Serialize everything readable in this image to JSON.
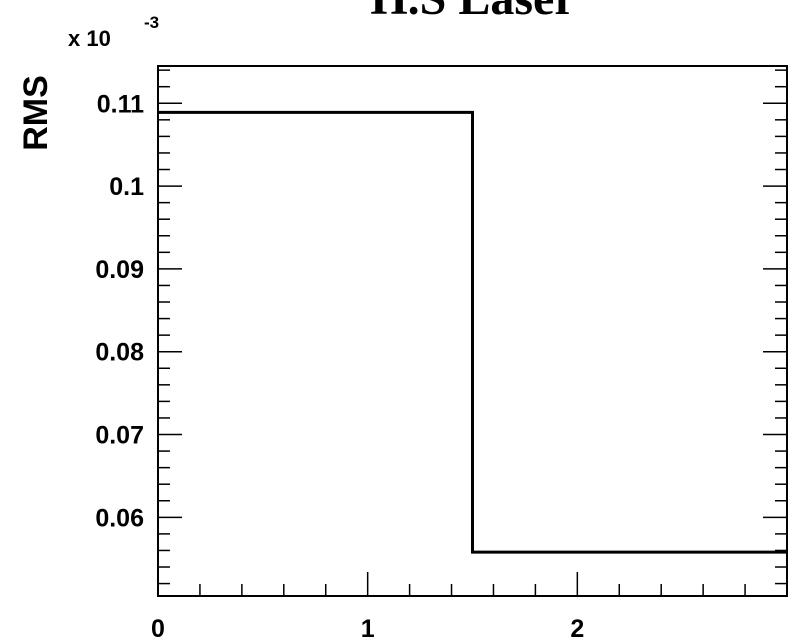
{
  "chart_data": {
    "type": "line",
    "style": "step-histogram",
    "title": "H.S Laser",
    "ylabel": "RMS",
    "xlabel": "",
    "y_multiplier_base": "x 10",
    "y_multiplier_exponent": "-3",
    "xlim": [
      0,
      3
    ],
    "ylim": [
      0.0505,
      0.1145
    ],
    "x_ticks": [
      "0",
      "1",
      "2"
    ],
    "y_ticks": [
      "0.06",
      "0.07",
      "0.08",
      "0.09",
      "0.1",
      "0.11"
    ],
    "bins": [
      {
        "x_start": 0,
        "x_end": 1.5,
        "value": 0.1089
      },
      {
        "x_start": 1.5,
        "x_end": 3,
        "value": 0.0558
      }
    ],
    "grid": false,
    "line_color": "#000000"
  }
}
